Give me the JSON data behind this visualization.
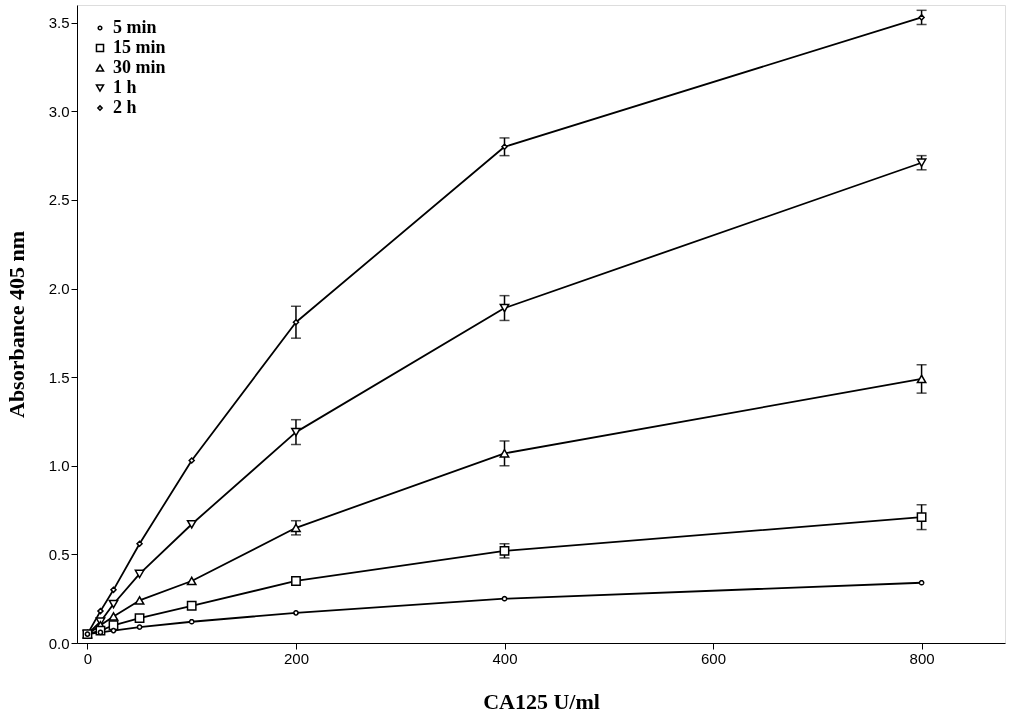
{
  "chart_data": {
    "type": "line",
    "xlabel": "CA125 U/ml",
    "ylabel": "Absorbance 405 nm",
    "x": [
      0,
      12.5,
      25,
      50,
      100,
      200,
      400,
      800
    ],
    "xlim": [
      -10,
      880
    ],
    "ylim": [
      0,
      3.6
    ],
    "xticks": [
      0,
      200,
      400,
      600,
      800
    ],
    "yticks": [
      {
        "value": 0,
        "label": "0.0"
      },
      0.5,
      {
        "value": 1,
        "label": "1.0"
      },
      1.5,
      {
        "value": 2,
        "label": "2.0"
      },
      2.5,
      {
        "value": 3,
        "label": "3.0"
      },
      3.5
    ],
    "grid": false,
    "legend": "top left",
    "line_style": "solid",
    "series": [
      {
        "name": "5 min",
        "color": "#000000",
        "marker": "circle",
        "values": [
          0.05,
          0.06,
          0.07,
          0.09,
          0.12,
          0.17,
          0.25,
          0.34
        ]
      },
      {
        "name": "15 min",
        "color": "#000000",
        "marker": "square",
        "values": [
          0.05,
          0.07,
          0.1,
          0.14,
          0.21,
          0.35,
          0.52,
          0.71
        ],
        "errors": [
          null,
          null,
          null,
          null,
          null,
          null,
          0.04,
          0.07
        ]
      },
      {
        "name": "30 min",
        "color": "#000000",
        "marker": "triangle",
        "values": [
          0.05,
          0.1,
          0.15,
          0.24,
          0.35,
          0.65,
          1.07,
          1.49
        ],
        "errors": [
          null,
          null,
          null,
          null,
          null,
          0.04,
          0.07,
          0.08
        ]
      },
      {
        "name": "1 h",
        "color": "#000000",
        "marker": "triangle-down",
        "values": [
          0.05,
          0.12,
          0.22,
          0.39,
          0.67,
          1.19,
          1.89,
          2.71
        ],
        "errors": [
          null,
          null,
          null,
          null,
          null,
          0.07,
          0.07,
          0.04
        ]
      },
      {
        "name": "2 h",
        "color": "#000000",
        "marker": "diamond",
        "values": [
          0.05,
          0.18,
          0.3,
          0.56,
          1.03,
          1.81,
          2.8,
          3.53
        ],
        "errors": [
          null,
          null,
          null,
          null,
          null,
          0.09,
          0.05,
          0.04
        ]
      }
    ]
  }
}
